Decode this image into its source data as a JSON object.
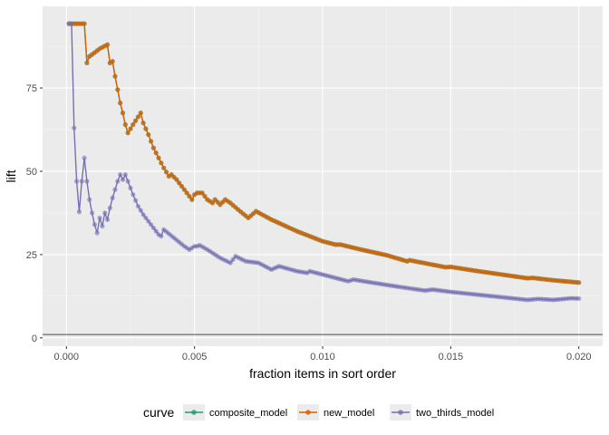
{
  "chart_data": {
    "type": "line",
    "title": "",
    "xlabel": "fraction items in sort order",
    "ylabel": "lift",
    "xlim": [
      -0.00093,
      0.02093
    ],
    "ylim": [
      -2.5,
      99.5
    ],
    "x_ticks": [
      0.0,
      0.005,
      0.01,
      0.015,
      0.02
    ],
    "x_tick_labels": [
      "0.000",
      "0.005",
      "0.010",
      "0.015",
      "0.020"
    ],
    "y_ticks": [
      0,
      25,
      50,
      75
    ],
    "y_tick_labels": [
      "0",
      "25",
      "50",
      "75"
    ],
    "reference_line_y": 1,
    "grid": true,
    "legend_title": "curve",
    "legend_position": "bottom",
    "series": [
      {
        "name": "composite_model",
        "color": "#1b9e77",
        "points": [
          [
            0.0001,
            94.3
          ],
          [
            0.0007,
            94.3
          ],
          [
            0.0008,
            82.5
          ],
          [
            0.0009,
            84.5
          ],
          [
            0.0011,
            85.6
          ],
          [
            0.0013,
            86.8
          ],
          [
            0.0016,
            88.0
          ],
          [
            0.0017,
            82.5
          ],
          [
            0.0018,
            83.0
          ],
          [
            0.0019,
            78.5
          ],
          [
            0.002,
            74.5
          ],
          [
            0.0021,
            70.5
          ],
          [
            0.0022,
            67.5
          ],
          [
            0.0023,
            64.0
          ],
          [
            0.0024,
            61.5
          ],
          [
            0.0026,
            64.0
          ],
          [
            0.0029,
            67.5
          ],
          [
            0.003,
            64.5
          ],
          [
            0.0032,
            61.0
          ],
          [
            0.0034,
            57.0
          ],
          [
            0.0036,
            54.0
          ],
          [
            0.0038,
            51.0
          ],
          [
            0.004,
            48.5
          ],
          [
            0.0041,
            49.0
          ],
          [
            0.0043,
            47.5
          ],
          [
            0.0045,
            45.5
          ],
          [
            0.0049,
            41.5
          ],
          [
            0.005,
            43.0
          ],
          [
            0.0051,
            43.5
          ],
          [
            0.0053,
            43.5
          ],
          [
            0.0055,
            41.5
          ],
          [
            0.0057,
            40.5
          ],
          [
            0.0058,
            41.5
          ],
          [
            0.006,
            40.0
          ],
          [
            0.0062,
            41.5
          ],
          [
            0.0064,
            40.5
          ],
          [
            0.0067,
            38.5
          ],
          [
            0.0071,
            36.0
          ],
          [
            0.0074,
            38.0
          ],
          [
            0.008,
            35.5
          ],
          [
            0.009,
            32.0
          ],
          [
            0.01,
            29.0
          ],
          [
            0.0105,
            28.0
          ],
          [
            0.0107,
            28.0
          ],
          [
            0.0115,
            26.5
          ],
          [
            0.0125,
            24.8
          ],
          [
            0.0133,
            23.0
          ],
          [
            0.0134,
            23.3
          ],
          [
            0.014,
            22.4
          ],
          [
            0.0148,
            21.2
          ],
          [
            0.015,
            21.3
          ],
          [
            0.016,
            20.1
          ],
          [
            0.017,
            19.0
          ],
          [
            0.018,
            17.9
          ],
          [
            0.0182,
            18.0
          ],
          [
            0.019,
            17.3
          ],
          [
            0.02,
            16.6
          ]
        ]
      },
      {
        "name": "new_model",
        "color": "#d95f02",
        "points": [
          [
            0.0001,
            94.3
          ],
          [
            0.0007,
            94.3
          ],
          [
            0.0008,
            82.5
          ],
          [
            0.0009,
            84.5
          ],
          [
            0.0011,
            85.6
          ],
          [
            0.0013,
            86.8
          ],
          [
            0.0016,
            88.0
          ],
          [
            0.0017,
            82.5
          ],
          [
            0.0018,
            83.0
          ],
          [
            0.0019,
            78.5
          ],
          [
            0.002,
            74.5
          ],
          [
            0.0021,
            70.5
          ],
          [
            0.0022,
            67.5
          ],
          [
            0.0023,
            64.0
          ],
          [
            0.0024,
            61.5
          ],
          [
            0.0026,
            64.0
          ],
          [
            0.0029,
            67.5
          ],
          [
            0.003,
            64.5
          ],
          [
            0.0032,
            61.0
          ],
          [
            0.0034,
            57.0
          ],
          [
            0.0036,
            54.0
          ],
          [
            0.0038,
            51.0
          ],
          [
            0.004,
            48.5
          ],
          [
            0.0041,
            49.0
          ],
          [
            0.0043,
            47.5
          ],
          [
            0.0045,
            45.5
          ],
          [
            0.0049,
            41.5
          ],
          [
            0.005,
            43.0
          ],
          [
            0.0051,
            43.5
          ],
          [
            0.0053,
            43.5
          ],
          [
            0.0055,
            41.5
          ],
          [
            0.0057,
            40.5
          ],
          [
            0.0058,
            41.5
          ],
          [
            0.006,
            40.0
          ],
          [
            0.0062,
            41.5
          ],
          [
            0.0064,
            40.5
          ],
          [
            0.0067,
            38.5
          ],
          [
            0.0071,
            36.0
          ],
          [
            0.0074,
            38.0
          ],
          [
            0.008,
            35.5
          ],
          [
            0.009,
            32.0
          ],
          [
            0.01,
            29.0
          ],
          [
            0.0105,
            28.0
          ],
          [
            0.0107,
            28.0
          ],
          [
            0.0115,
            26.5
          ],
          [
            0.0125,
            24.8
          ],
          [
            0.0133,
            23.0
          ],
          [
            0.0134,
            23.3
          ],
          [
            0.014,
            22.4
          ],
          [
            0.0148,
            21.2
          ],
          [
            0.015,
            21.3
          ],
          [
            0.016,
            20.1
          ],
          [
            0.017,
            19.0
          ],
          [
            0.018,
            17.9
          ],
          [
            0.0182,
            18.0
          ],
          [
            0.019,
            17.3
          ],
          [
            0.02,
            16.6
          ]
        ]
      },
      {
        "name": "two_thirds_model",
        "color": "#7570b3",
        "points": [
          [
            0.0001,
            94.3
          ],
          [
            0.0002,
            94.3
          ],
          [
            0.0003,
            63.0
          ],
          [
            0.0004,
            47.0
          ],
          [
            0.0005,
            37.8
          ],
          [
            0.0006,
            47.0
          ],
          [
            0.0007,
            54.0
          ],
          [
            0.0008,
            47.0
          ],
          [
            0.0009,
            41.5
          ],
          [
            0.001,
            37.5
          ],
          [
            0.0011,
            34.0
          ],
          [
            0.0012,
            31.5
          ],
          [
            0.0013,
            36.0
          ],
          [
            0.0014,
            33.5
          ],
          [
            0.0015,
            37.5
          ],
          [
            0.0016,
            35.5
          ],
          [
            0.0017,
            39.0
          ],
          [
            0.0018,
            42.0
          ],
          [
            0.0019,
            44.5
          ],
          [
            0.002,
            47.0
          ],
          [
            0.0021,
            49.0
          ],
          [
            0.0022,
            47.5
          ],
          [
            0.0023,
            49.0
          ],
          [
            0.0024,
            47.0
          ],
          [
            0.0025,
            45.0
          ],
          [
            0.0026,
            43.0
          ],
          [
            0.0028,
            39.5
          ],
          [
            0.003,
            37.0
          ],
          [
            0.0032,
            35.0
          ],
          [
            0.0034,
            33.0
          ],
          [
            0.0036,
            31.0
          ],
          [
            0.0037,
            30.5
          ],
          [
            0.0038,
            32.5
          ],
          [
            0.0042,
            30.0
          ],
          [
            0.0046,
            27.5
          ],
          [
            0.0048,
            26.5
          ],
          [
            0.005,
            27.5
          ],
          [
            0.0051,
            27.5
          ],
          [
            0.0052,
            27.8
          ],
          [
            0.0055,
            26.5
          ],
          [
            0.006,
            24.0
          ],
          [
            0.0064,
            22.5
          ],
          [
            0.0066,
            24.5
          ],
          [
            0.007,
            23.0
          ],
          [
            0.0075,
            22.5
          ],
          [
            0.008,
            20.5
          ],
          [
            0.0083,
            21.5
          ],
          [
            0.009,
            20.0
          ],
          [
            0.0094,
            19.5
          ],
          [
            0.0095,
            20.0
          ],
          [
            0.01,
            19.0
          ],
          [
            0.011,
            17.0
          ],
          [
            0.0112,
            17.5
          ],
          [
            0.012,
            16.5
          ],
          [
            0.013,
            15.3
          ],
          [
            0.014,
            14.2
          ],
          [
            0.0143,
            14.5
          ],
          [
            0.015,
            13.8
          ],
          [
            0.016,
            13.0
          ],
          [
            0.017,
            12.2
          ],
          [
            0.018,
            11.4
          ],
          [
            0.0184,
            11.7
          ],
          [
            0.019,
            11.4
          ],
          [
            0.0197,
            11.9
          ],
          [
            0.02,
            11.8
          ]
        ]
      }
    ]
  }
}
